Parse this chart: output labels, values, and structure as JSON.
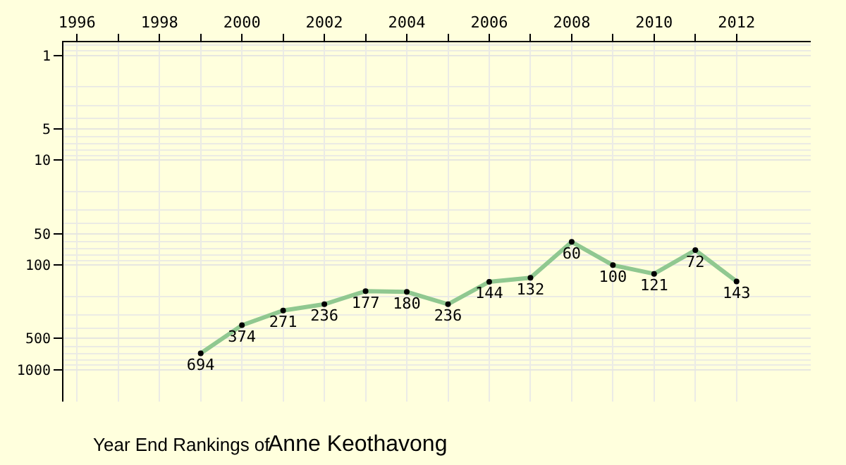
{
  "chart_data": {
    "type": "line",
    "title": "Year End Rankings of",
    "subtitle": "Anne Keothavong",
    "x": [
      1999,
      2000,
      2001,
      2002,
      2003,
      2004,
      2005,
      2006,
      2007,
      2008,
      2009,
      2010,
      2011,
      2012
    ],
    "series": [
      {
        "color": "#90c890",
        "values": [
          694,
          374,
          271,
          236,
          177,
          180,
          236,
          144,
          132,
          60,
          100,
          121,
          72,
          143
        ]
      }
    ],
    "xlim": [
      1995.67,
      2013.8
    ],
    "xticks": [
      1996,
      {
        "value": 1997,
        "label": null
      },
      1998,
      {
        "value": 1999,
        "label": null
      },
      2000,
      {
        "value": 2001,
        "label": null
      },
      2002,
      {
        "value": 2003,
        "label": null
      },
      2004,
      {
        "value": 2005,
        "label": null
      },
      2006,
      {
        "value": 2007,
        "label": null
      },
      2008,
      {
        "value": 2009,
        "label": null
      },
      2010,
      {
        "value": 2011,
        "label": null
      },
      2012
    ],
    "ylim": [
      2000,
      0.75
    ],
    "yticks": [
      1,
      5,
      10,
      50,
      100,
      500,
      1000
    ],
    "log": "y",
    "grid": true,
    "legend": false,
    "marker": "circle",
    "line_style": "solid",
    "data_labels": true
  }
}
